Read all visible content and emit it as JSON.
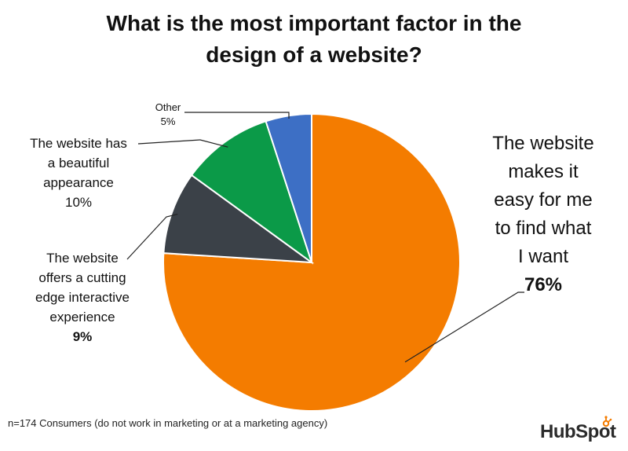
{
  "colors": {
    "easy_to_find": "#F47C00",
    "cutting_edge": "#3B4148",
    "beautiful": "#0B9A48",
    "other": "#3D6FC5",
    "logo_accent": "#F47C00"
  },
  "chart_data": {
    "type": "pie",
    "title_lines": [
      "What is the most important factor in the",
      "design of a website?"
    ],
    "slices": [
      {
        "label_lines": [
          "The website",
          "makes it",
          "easy for me",
          "to find what",
          "I want"
        ],
        "value": 76,
        "value_label": "76%"
      },
      {
        "label_lines": [
          "The website",
          "offers a cutting",
          "edge interactive",
          "experience"
        ],
        "value": 9,
        "value_label": "9%"
      },
      {
        "label_lines": [
          "The website has",
          "a beautiful",
          "appearance"
        ],
        "value": 10,
        "value_label": "10%"
      },
      {
        "label_lines": [
          "Other"
        ],
        "value": 5,
        "value_label": "5%"
      }
    ],
    "start_angle_deg": 0,
    "direction": "clockwise",
    "note": "n=174 Consumers (do not work in marketing or at a marketing agency)"
  },
  "logo": {
    "text_before": "HubSp",
    "text_o": "o",
    "text_after": "t",
    "icon": "sprocket-icon"
  }
}
